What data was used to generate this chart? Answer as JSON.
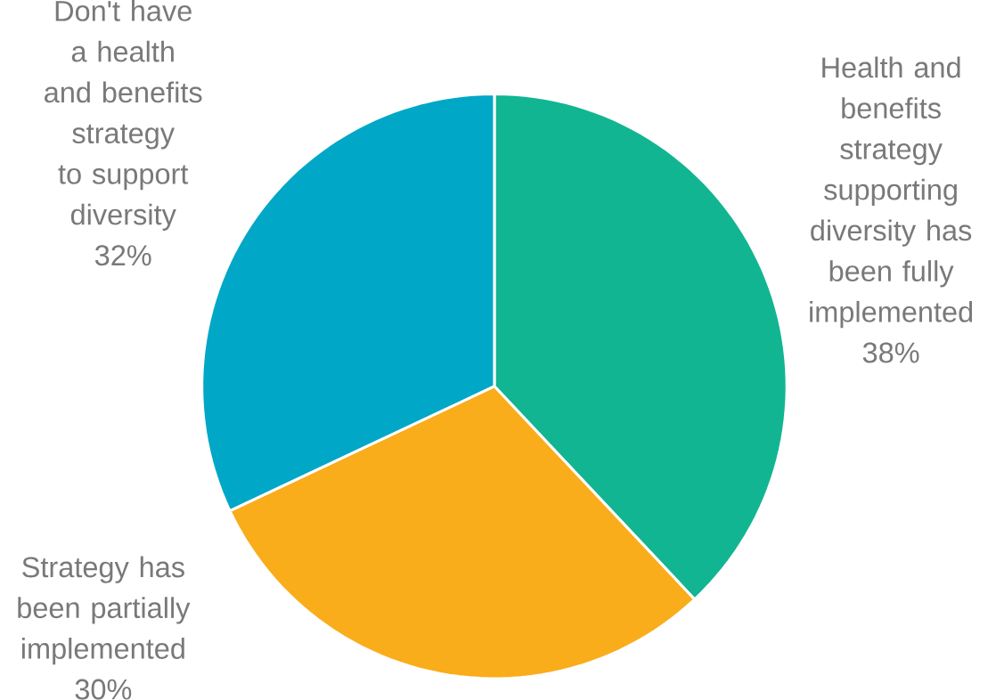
{
  "chart_data": {
    "type": "pie",
    "categories": [
      "Health and benefits strategy supporting diversity has been fully implemented",
      "Strategy has been partially implemented",
      "Don't have a health and benefits strategy to support diversity"
    ],
    "values": [
      38,
      30,
      32
    ],
    "colors": [
      "#12b592",
      "#f9ad1a",
      "#00a7c6"
    ],
    "value_labels": [
      "38%",
      "30%",
      "32%"
    ]
  }
}
